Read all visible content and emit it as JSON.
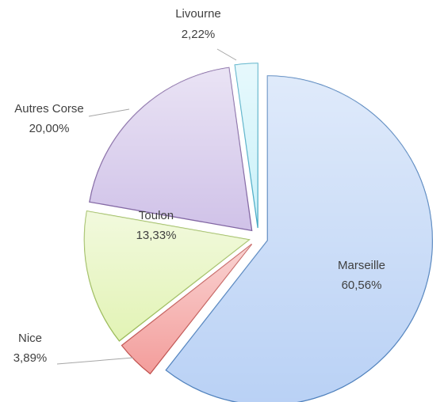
{
  "chart_data": {
    "type": "pie",
    "categories": [
      "Marseille",
      "Nice",
      "Toulon",
      "Autres Corse",
      "Livourne"
    ],
    "values": [
      60.56,
      3.89,
      13.33,
      20.0,
      2.22
    ],
    "value_labels": [
      "60,56%",
      "3,89%",
      "13,33%",
      "20,00%",
      "2,22%"
    ],
    "colors": [
      "#b9d1f5",
      "#f39d9b",
      "#e2f3b5",
      "#d0c2e8",
      "#c9f1f9"
    ],
    "edge_colors": [
      "#4f81bd",
      "#c0504d",
      "#9bbb59",
      "#8064a2",
      "#4bacc6"
    ]
  }
}
